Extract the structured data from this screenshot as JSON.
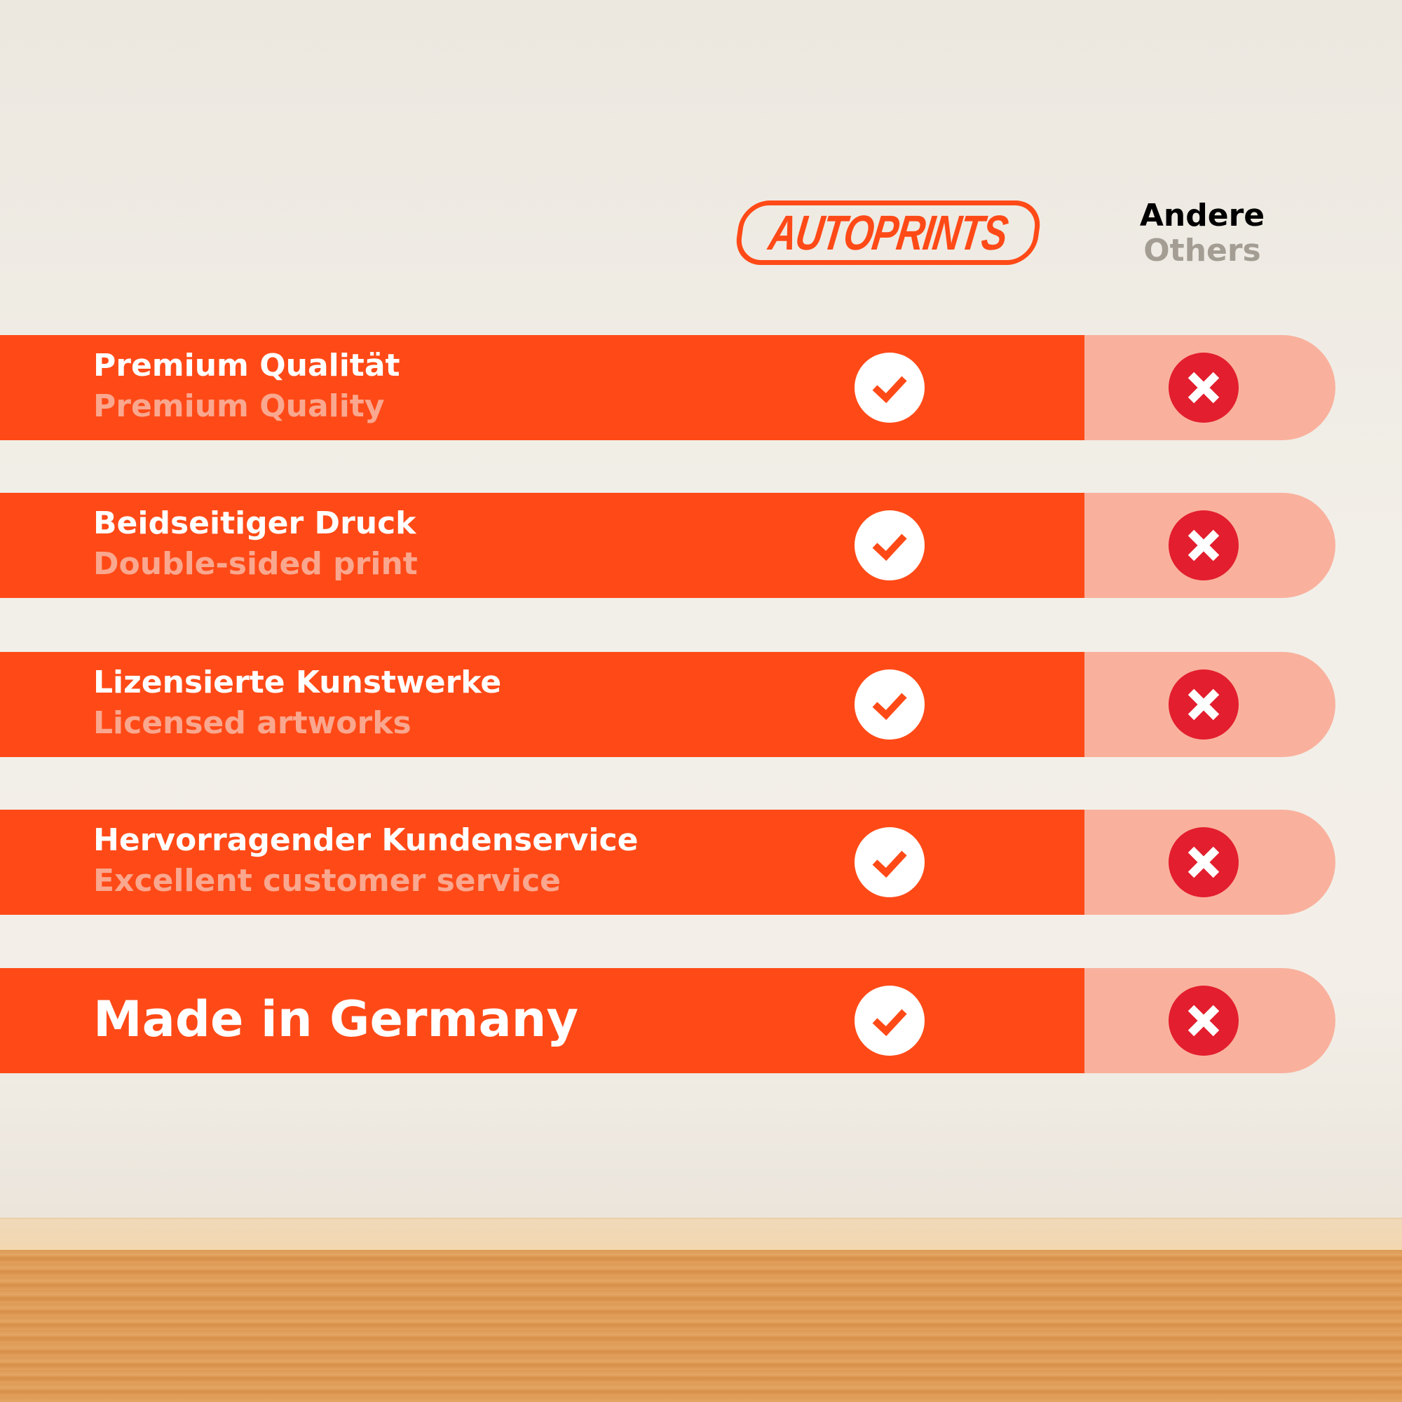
{
  "brand": {
    "logo_text": "AUTOPRINTS",
    "accent": "#ff4a17"
  },
  "columns": {
    "others_de": "Andere",
    "others_en": "Others"
  },
  "rows": [
    {
      "de": "Premium Qualität",
      "en": "Premium Quality",
      "autoprints": "check-icon",
      "others": "cross-icon"
    },
    {
      "de": "Beidseitiger Druck",
      "en": "Double-sided print",
      "autoprints": "check-icon",
      "others": "cross-icon"
    },
    {
      "de": "Lizensierte Kunstwerke",
      "en": "Licensed artworks",
      "autoprints": "check-icon",
      "others": "cross-icon"
    },
    {
      "de": "Hervorragender Kundenservice",
      "en": "Excellent customer service",
      "autoprints": "check-icon",
      "others": "cross-icon"
    },
    {
      "de": "Made in Germany",
      "autoprints": "check-icon",
      "others": "cross-icon"
    }
  ],
  "colors": {
    "bar": "#ff4a17",
    "others_bar": "#f9b19d",
    "cross": "#e31e2e",
    "subtitle": "#f9a78f"
  }
}
